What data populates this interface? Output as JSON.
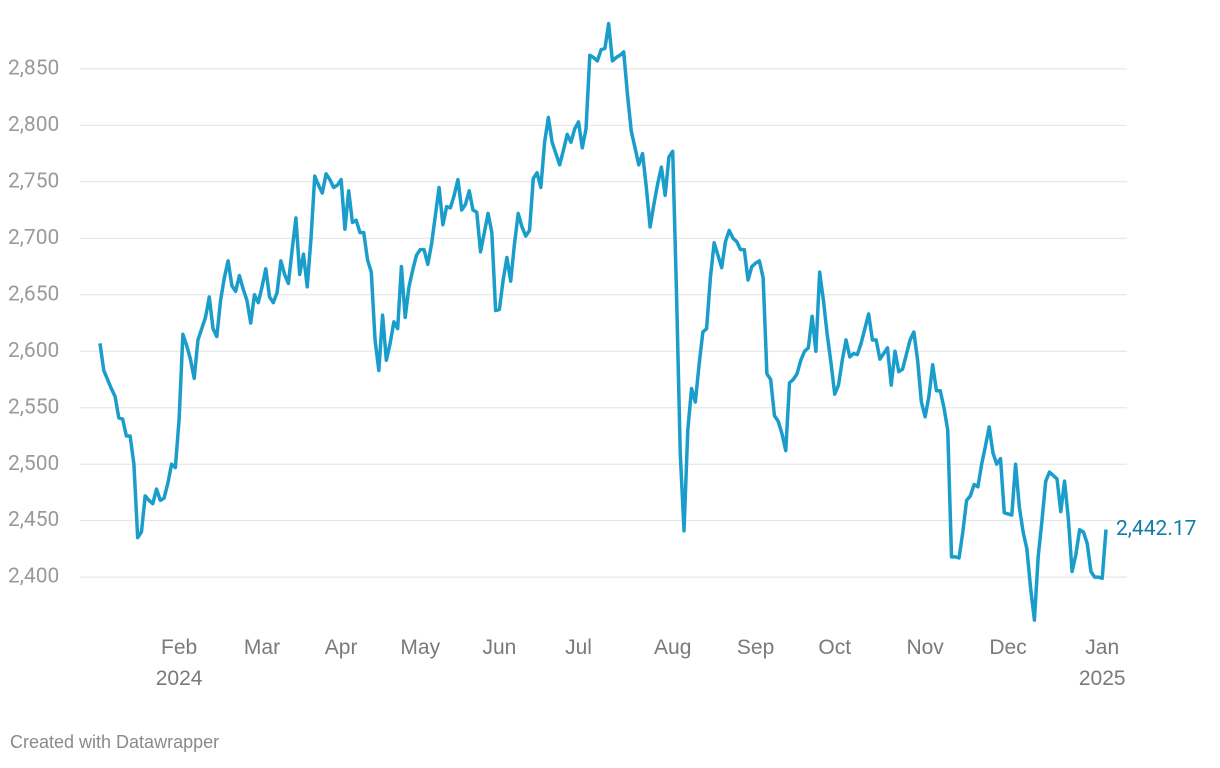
{
  "chart_data": {
    "type": "line",
    "color": "#1a9dcb",
    "label_color": "#0f7ea6",
    "grid": true,
    "ylim": [
      2355,
      2895
    ],
    "yticks": [
      {
        "value": 2400,
        "label": "2,400"
      },
      {
        "value": 2450,
        "label": "2,450"
      },
      {
        "value": 2500,
        "label": "2,500"
      },
      {
        "value": 2550,
        "label": "2,550"
      },
      {
        "value": 2600,
        "label": "2,600"
      },
      {
        "value": 2650,
        "label": "2,650"
      },
      {
        "value": 2700,
        "label": "2,700"
      },
      {
        "value": 2750,
        "label": "2,750"
      },
      {
        "value": 2800,
        "label": "2,800"
      },
      {
        "value": 2850,
        "label": "2,850"
      }
    ],
    "categories": [
      null,
      null,
      null,
      null,
      null,
      null,
      null,
      null,
      null,
      null,
      null,
      null,
      null,
      null,
      null,
      null,
      null,
      null,
      null,
      null,
      null,
      "Feb\n2024",
      null,
      null,
      null,
      null,
      null,
      null,
      null,
      null,
      null,
      null,
      null,
      null,
      null,
      null,
      null,
      null,
      null,
      null,
      null,
      null,
      null,
      "Mar",
      null,
      null,
      null,
      null,
      null,
      null,
      null,
      null,
      null,
      null,
      null,
      null,
      null,
      null,
      null,
      null,
      null,
      null,
      null,
      null,
      "Apr",
      null,
      null,
      null,
      null,
      null,
      null,
      null,
      null,
      null,
      null,
      null,
      null,
      null,
      null,
      null,
      null,
      null,
      null,
      null,
      null,
      "May",
      null,
      null,
      null,
      null,
      null,
      null,
      null,
      null,
      null,
      null,
      null,
      null,
      null,
      null,
      null,
      null,
      null,
      null,
      null,
      null,
      "Jun",
      null,
      null,
      null,
      null,
      null,
      null,
      null,
      null,
      null,
      null,
      null,
      null,
      null,
      null,
      null,
      null,
      null,
      null,
      null,
      null,
      "Jul",
      null,
      null,
      null,
      null,
      null,
      null,
      null,
      null,
      null,
      null,
      null,
      null,
      null,
      null,
      null,
      null,
      null,
      null,
      null,
      null,
      null,
      null,
      null,
      null,
      "Aug",
      null,
      null,
      null,
      null,
      null,
      null,
      null,
      null,
      null,
      null,
      null,
      null,
      null,
      null,
      null,
      null,
      null,
      null,
      null,
      null,
      null,
      "Sep",
      null,
      null,
      null,
      null,
      null,
      null,
      null,
      null,
      null,
      null,
      null,
      null,
      null,
      null,
      null,
      null,
      null,
      null,
      null,
      null,
      "Oct",
      null,
      null,
      null,
      null,
      null,
      null,
      null,
      null,
      null,
      null,
      null,
      null,
      null,
      null,
      null,
      null,
      null,
      null,
      null,
      null,
      null,
      null,
      null,
      "Nov",
      null,
      null,
      null,
      null,
      null,
      null,
      null,
      null,
      null,
      null,
      null,
      null,
      null,
      null,
      null,
      null,
      null,
      null,
      null,
      null,
      null,
      "Dec",
      null,
      null,
      null,
      null,
      null,
      null,
      null,
      null,
      null,
      null,
      null,
      null,
      null,
      null,
      null,
      null,
      null,
      null,
      null,
      null,
      null,
      null,
      null,
      null,
      "Jan\n2025",
      null
    ],
    "values": [
      2607,
      2583,
      2575,
      2567,
      2560,
      2541,
      2540,
      2525,
      2525,
      2500,
      2435,
      2440,
      2472,
      2468,
      2465,
      2478,
      2468,
      2470,
      2483,
      2500,
      2497,
      2540,
      2615,
      2605,
      2593,
      2576,
      2610,
      2620,
      2630,
      2648,
      2620,
      2613,
      2645,
      2665,
      2680,
      2658,
      2653,
      2667,
      2655,
      2645,
      2625,
      2650,
      2643,
      2657,
      2673,
      2648,
      2643,
      2652,
      2680,
      2668,
      2660,
      2690,
      2718,
      2668,
      2686,
      2657,
      2700,
      2755,
      2747,
      2740,
      2757,
      2752,
      2745,
      2747,
      2752,
      2708,
      2742,
      2714,
      2716,
      2705,
      2705,
      2681,
      2670,
      2610,
      2583,
      2632,
      2592,
      2607,
      2626,
      2620,
      2675,
      2630,
      2657,
      2672,
      2685,
      2690,
      2690,
      2677,
      2695,
      2720,
      2745,
      2712,
      2728,
      2727,
      2738,
      2752,
      2725,
      2730,
      2742,
      2725,
      2723,
      2688,
      2705,
      2722,
      2705,
      2636,
      2637,
      2663,
      2683,
      2662,
      2695,
      2722,
      2710,
      2702,
      2707,
      2753,
      2758,
      2745,
      2785,
      2807,
      2785,
      2775,
      2765,
      2778,
      2792,
      2785,
      2797,
      2803,
      2780,
      2797,
      2862,
      2860,
      2857,
      2867,
      2868,
      2890,
      2857,
      2860,
      2862,
      2865,
      2827,
      2795,
      2780,
      2765,
      2775,
      2745,
      2710,
      2730,
      2748,
      2763,
      2738,
      2772,
      2777,
      2653,
      2510,
      2441,
      2530,
      2567,
      2555,
      2588,
      2617,
      2620,
      2665,
      2696,
      2685,
      2674,
      2697,
      2707,
      2700,
      2697,
      2690,
      2690,
      2663,
      2675,
      2678,
      2680,
      2665,
      2580,
      2575,
      2543,
      2538,
      2527,
      2512,
      2572,
      2575,
      2580,
      2592,
      2600,
      2603,
      2631,
      2600,
      2670,
      2645,
      2615,
      2590,
      2562,
      2570,
      2592,
      2610,
      2595,
      2598,
      2597,
      2607,
      2620,
      2633,
      2610,
      2610,
      2593,
      2598,
      2603,
      2570,
      2600,
      2582,
      2584,
      2597,
      2610,
      2617,
      2592,
      2555,
      2542,
      2560,
      2588,
      2565,
      2565,
      2550,
      2530,
      2418,
      2418,
      2417,
      2440,
      2468,
      2472,
      2482,
      2480,
      2500,
      2516,
      2533,
      2510,
      2500,
      2505,
      2457,
      2456,
      2455,
      2500,
      2462,
      2440,
      2425,
      2390,
      2362,
      2418,
      2450,
      2485,
      2493,
      2490,
      2487,
      2458,
      2485,
      2452,
      2405,
      2420,
      2442,
      2440,
      2430,
      2405,
      2400,
      2400,
      2399,
      2442.17
    ],
    "value_labels": [
      null,
      null,
      null,
      null,
      null,
      null,
      null,
      null,
      null,
      null,
      null,
      null,
      null,
      null,
      null,
      null,
      null,
      null,
      null,
      null,
      null,
      null,
      null,
      null,
      null,
      null,
      null,
      null,
      null,
      null,
      null,
      null,
      null,
      null,
      null,
      null,
      null,
      null,
      null,
      null,
      null,
      null,
      null,
      null,
      null,
      null,
      null,
      null,
      null,
      null,
      null,
      null,
      null,
      null,
      null,
      null,
      null,
      null,
      null,
      null,
      null,
      null,
      null,
      null,
      null,
      null,
      null,
      null,
      null,
      null,
      null,
      null,
      null,
      null,
      null,
      null,
      null,
      null,
      null,
      null,
      null,
      null,
      null,
      null,
      null,
      null,
      null,
      null,
      null,
      null,
      null,
      null,
      null,
      null,
      null,
      null,
      null,
      null,
      null,
      null,
      null,
      null,
      null,
      null,
      null,
      null,
      null,
      null,
      null,
      null,
      null,
      null,
      null,
      null,
      null,
      null,
      null,
      null,
      null,
      null,
      null,
      null,
      null,
      null,
      null,
      null,
      null,
      null,
      null,
      null,
      null,
      null,
      null,
      null,
      null,
      null,
      null,
      null,
      null,
      null,
      null,
      null,
      null,
      null,
      null,
      null,
      null,
      null,
      null,
      null,
      null,
      null,
      null,
      null,
      null,
      null,
      null,
      null,
      null,
      null,
      null,
      null,
      null,
      null,
      null,
      null,
      null,
      null,
      null,
      null,
      null,
      null,
      null,
      null,
      null,
      null,
      null,
      null,
      null,
      null,
      null,
      null,
      null,
      null,
      null,
      null,
      null,
      null,
      null,
      null,
      null,
      null,
      null,
      null,
      null,
      null,
      null,
      null,
      null,
      null,
      null,
      null,
      null,
      null,
      null,
      null,
      null,
      null,
      null,
      null,
      null,
      null,
      null,
      null,
      null,
      null,
      null,
      null,
      null,
      null,
      null,
      null,
      null,
      null,
      null,
      null,
      null,
      null,
      null,
      null,
      null,
      null,
      null,
      null,
      null,
      null,
      null,
      null,
      null,
      null,
      null,
      null,
      null,
      null,
      null,
      null,
      null,
      null,
      null,
      null,
      null,
      null,
      null,
      null,
      null,
      null,
      null,
      null,
      null,
      null,
      null,
      null,
      null,
      null,
      null,
      null,
      null,
      "2,442.17"
    ]
  },
  "footer": "Created with Datawrapper"
}
